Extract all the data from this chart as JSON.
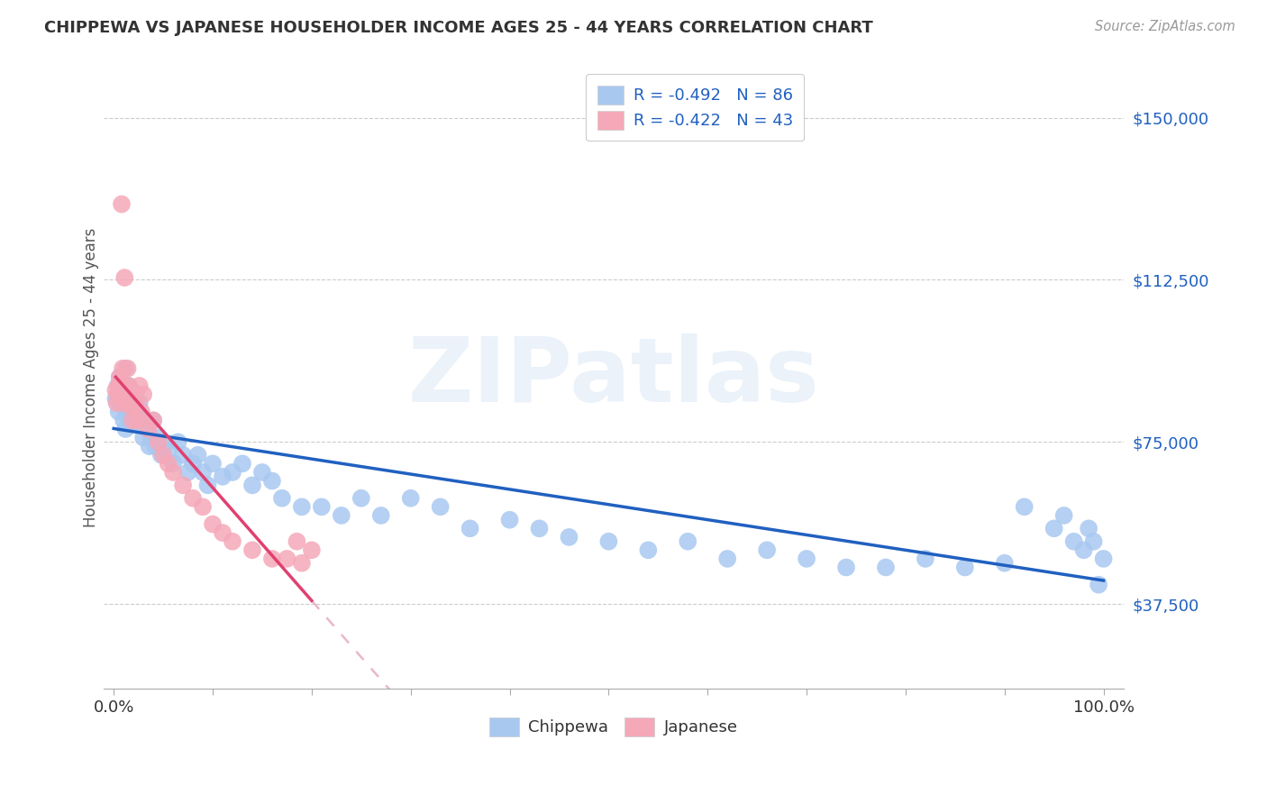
{
  "title": "CHIPPEWA VS JAPANESE HOUSEHOLDER INCOME AGES 25 - 44 YEARS CORRELATION CHART",
  "source": "Source: ZipAtlas.com",
  "ylabel": "Householder Income Ages 25 - 44 years",
  "yticks": [
    37500,
    75000,
    112500,
    150000
  ],
  "ytick_labels": [
    "$37,500",
    "$75,000",
    "$112,500",
    "$150,000"
  ],
  "xtick_labels": [
    "0.0%",
    "",
    "",
    "",
    "",
    "",
    "",
    "",
    "",
    "",
    "100.0%"
  ],
  "watermark": "ZIPatlas",
  "legend_chippewa_R": "R = -0.492",
  "legend_chippewa_N": "N = 86",
  "legend_japanese_R": "R = -0.422",
  "legend_japanese_N": "N = 43",
  "chippewa_color": "#a8c8f0",
  "japanese_color": "#f5a8b8",
  "chippewa_line_color": "#2060c0",
  "japanese_line_color": "#e04070",
  "japanese_ext_line_color": "#e8b0c0",
  "background_color": "#ffffff",
  "legend_text_color": "#2060c0",
  "ytick_color": "#2060c0",
  "xtick_color": "#2060c0",
  "chippewa_x": [
    0.002,
    0.004,
    0.005,
    0.006,
    0.007,
    0.008,
    0.009,
    0.01,
    0.01,
    0.011,
    0.012,
    0.012,
    0.013,
    0.014,
    0.015,
    0.015,
    0.016,
    0.017,
    0.018,
    0.018,
    0.019,
    0.02,
    0.021,
    0.022,
    0.023,
    0.025,
    0.026,
    0.028,
    0.03,
    0.032,
    0.034,
    0.036,
    0.038,
    0.04,
    0.042,
    0.045,
    0.048,
    0.05,
    0.055,
    0.06,
    0.065,
    0.07,
    0.075,
    0.08,
    0.085,
    0.09,
    0.095,
    0.1,
    0.11,
    0.12,
    0.13,
    0.14,
    0.15,
    0.16,
    0.17,
    0.19,
    0.21,
    0.23,
    0.25,
    0.27,
    0.3,
    0.33,
    0.36,
    0.4,
    0.43,
    0.46,
    0.5,
    0.54,
    0.58,
    0.62,
    0.66,
    0.7,
    0.74,
    0.78,
    0.82,
    0.86,
    0.9,
    0.92,
    0.95,
    0.96,
    0.97,
    0.98,
    0.985,
    0.99,
    0.995,
    1.0
  ],
  "chippewa_y": [
    85000,
    88000,
    82000,
    90000,
    87000,
    84000,
    88000,
    80000,
    86000,
    83000,
    92000,
    78000,
    85000,
    87000,
    82000,
    88000,
    80000,
    85000,
    83000,
    87000,
    79000,
    84000,
    81000,
    86000,
    82000,
    79000,
    84000,
    80000,
    76000,
    80000,
    78000,
    74000,
    76000,
    80000,
    74000,
    76000,
    72000,
    74000,
    73000,
    70000,
    75000,
    72000,
    68000,
    70000,
    72000,
    68000,
    65000,
    70000,
    67000,
    68000,
    70000,
    65000,
    68000,
    66000,
    62000,
    60000,
    60000,
    58000,
    62000,
    58000,
    62000,
    60000,
    55000,
    57000,
    55000,
    53000,
    52000,
    50000,
    52000,
    48000,
    50000,
    48000,
    46000,
    46000,
    48000,
    46000,
    47000,
    60000,
    55000,
    58000,
    52000,
    50000,
    55000,
    52000,
    42000,
    48000
  ],
  "japanese_x": [
    0.002,
    0.003,
    0.004,
    0.005,
    0.006,
    0.007,
    0.008,
    0.009,
    0.01,
    0.01,
    0.011,
    0.012,
    0.013,
    0.014,
    0.015,
    0.016,
    0.017,
    0.018,
    0.019,
    0.02,
    0.022,
    0.024,
    0.026,
    0.028,
    0.03,
    0.035,
    0.04,
    0.045,
    0.05,
    0.055,
    0.06,
    0.07,
    0.08,
    0.09,
    0.1,
    0.11,
    0.12,
    0.14,
    0.16,
    0.175,
    0.185,
    0.19,
    0.2
  ],
  "japanese_y": [
    87000,
    84000,
    86000,
    88000,
    90000,
    85000,
    130000,
    92000,
    88000,
    84000,
    113000,
    87000,
    85000,
    92000,
    88000,
    84000,
    86000,
    83000,
    80000,
    86000,
    84000,
    80000,
    88000,
    82000,
    86000,
    78000,
    80000,
    75000,
    72000,
    70000,
    68000,
    65000,
    62000,
    60000,
    56000,
    54000,
    52000,
    50000,
    48000,
    48000,
    52000,
    47000,
    50000
  ],
  "xlim": [
    -0.01,
    1.02
  ],
  "ylim": [
    18000,
    162000
  ]
}
